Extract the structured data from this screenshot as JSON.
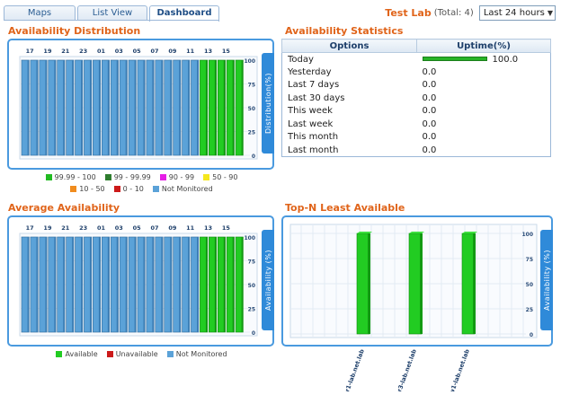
{
  "tabs": [
    {
      "label": "Maps",
      "active": false
    },
    {
      "label": "List View",
      "active": false
    },
    {
      "label": "Dashboard",
      "active": true
    }
  ],
  "header": {
    "lab_name": "Test Lab",
    "total_text": "(Total: 4)",
    "range_selected": "Last 24 hours"
  },
  "colors": {
    "accent": "#e0641a",
    "frame": "#4a9adf",
    "bar_blue": "#5ba2d8",
    "bar_green": "#22cc22"
  },
  "availability_distribution": {
    "title": "Availability Distribution",
    "side_label": "Distribution(%)",
    "hour_labels": [
      "17",
      "19",
      "21",
      "23",
      "01",
      "03",
      "05",
      "07",
      "09",
      "11",
      "13",
      "15"
    ],
    "y_ticks": [
      "100",
      "75",
      "50",
      "25",
      "0"
    ],
    "legend": [
      {
        "label": "99.99 - 100",
        "color": "#22bb22"
      },
      {
        "label": "99 - 99.99",
        "color": "#2f7d2f"
      },
      {
        "label": "90 - 99",
        "color": "#e61ee6"
      },
      {
        "label": "50 - 90",
        "color": "#f5e71e"
      },
      {
        "label": "10 - 50",
        "color": "#f08c1e"
      },
      {
        "label": "0 - 10",
        "color": "#cc1a1a"
      },
      {
        "label": "Not Monitored",
        "color": "#5ba2d8"
      }
    ]
  },
  "average_availability": {
    "title": "Average Availability",
    "side_label": "Availability (%)",
    "hour_labels": [
      "17",
      "19",
      "21",
      "23",
      "01",
      "03",
      "05",
      "07",
      "09",
      "11",
      "13",
      "15"
    ],
    "y_ticks": [
      "100",
      "75",
      "50",
      "25",
      "0"
    ],
    "legend": [
      {
        "label": "Available",
        "color": "#22cc22"
      },
      {
        "label": "Unavailable",
        "color": "#cc1a1a"
      },
      {
        "label": "Not Monitored",
        "color": "#5ba2d8"
      }
    ]
  },
  "availability_statistics": {
    "title": "Availability Statistics",
    "col_options": "Options",
    "col_uptime": "Uptime(%)",
    "rows": [
      {
        "option": "Today",
        "uptime": "100.0",
        "bar_fraction": 1.0
      },
      {
        "option": "Yesterday",
        "uptime": "0.0",
        "bar_fraction": 0
      },
      {
        "option": "Last 7 days",
        "uptime": "0.0",
        "bar_fraction": 0
      },
      {
        "option": "Last 30 days",
        "uptime": "0.0",
        "bar_fraction": 0
      },
      {
        "option": "This week",
        "uptime": "0.0",
        "bar_fraction": 0
      },
      {
        "option": "Last week",
        "uptime": "0.0",
        "bar_fraction": 0
      },
      {
        "option": "This month",
        "uptime": "0.0",
        "bar_fraction": 0
      },
      {
        "option": "Last month",
        "uptime": "0.0",
        "bar_fraction": 0
      }
    ]
  },
  "top_n": {
    "title": "Top-N Least Available",
    "side_label": "Availability (%)",
    "y_ticks": [
      "100",
      "75",
      "50",
      "25",
      "0"
    ]
  },
  "chart_data": [
    {
      "type": "bar",
      "title": "Availability Distribution",
      "ylabel": "Distribution(%)",
      "ylim": [
        0,
        100
      ],
      "bar_count": 25,
      "series": [
        {
          "name": "Not Monitored",
          "values": [
            100,
            100,
            100,
            100,
            100,
            100,
            100,
            100,
            100,
            100,
            100,
            100,
            100,
            100,
            100,
            100,
            100,
            100,
            100,
            100,
            0,
            0,
            0,
            0,
            0
          ]
        },
        {
          "name": "99.99 - 100",
          "values": [
            0,
            0,
            0,
            0,
            0,
            0,
            0,
            0,
            0,
            0,
            0,
            0,
            0,
            0,
            0,
            0,
            0,
            0,
            0,
            0,
            100,
            100,
            100,
            100,
            100
          ]
        }
      ]
    },
    {
      "type": "bar",
      "title": "Average Availability",
      "ylabel": "Availability (%)",
      "ylim": [
        0,
        100
      ],
      "bar_count": 25,
      "series": [
        {
          "name": "Not Monitored",
          "values": [
            100,
            100,
            100,
            100,
            100,
            100,
            100,
            100,
            100,
            100,
            100,
            100,
            100,
            100,
            100,
            100,
            100,
            100,
            100,
            100,
            0,
            0,
            0,
            0,
            0
          ]
        },
        {
          "name": "Available",
          "values": [
            0,
            0,
            0,
            0,
            0,
            0,
            0,
            0,
            0,
            0,
            0,
            0,
            0,
            0,
            0,
            0,
            0,
            0,
            0,
            0,
            100,
            100,
            100,
            100,
            100
          ]
        }
      ]
    },
    {
      "type": "bar",
      "title": "Top-N Least Available",
      "ylabel": "Availability (%)",
      "ylim": [
        0,
        100
      ],
      "categories": [
        "rtr1-lab.net.lab",
        "rtr3-lab.net.lab",
        "sw1-lab.net.lab"
      ],
      "values": [
        100,
        100,
        100
      ]
    }
  ]
}
